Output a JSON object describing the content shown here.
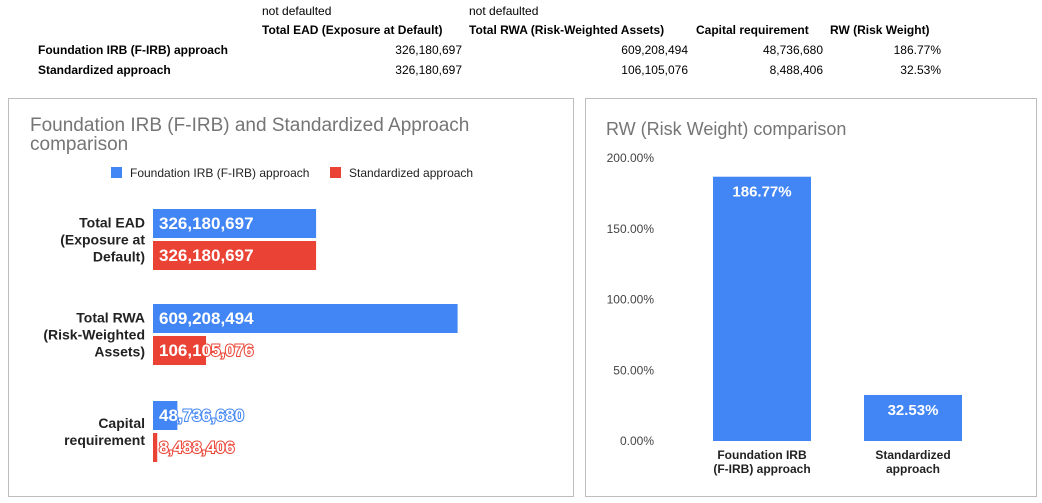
{
  "table": {
    "subheaders": [
      "not defaulted",
      "not defaulted"
    ],
    "headers": [
      "Total EAD (Exposure at Default)",
      "Total RWA (Risk-Weighted Assets)",
      "Capital requirement",
      "RW (Risk Weight)"
    ],
    "rows": [
      {
        "label": "Foundation IRB (F-IRB) approach",
        "ead": "326,180,697",
        "rwa": "609,208,494",
        "capital": "48,736,680",
        "rw": "186.77%"
      },
      {
        "label": "Standardized approach",
        "ead": "326,180,697",
        "rwa": "106,105,076",
        "capital": "8,488,406",
        "rw": "32.53%"
      }
    ]
  },
  "chart_data": [
    {
      "type": "bar",
      "orientation": "horizontal",
      "title": "Foundation IRB (F-IRB)  and Standardized Approach comparison",
      "title_lines": [
        "Foundation IRB (F-IRB)  and Standardized Approach",
        "comparison"
      ],
      "categories": [
        "Total EAD (Exposure at Default)",
        "Total RWA (Risk-Weighted Assets)",
        "Capital requirement"
      ],
      "category_lines": [
        [
          "Total EAD",
          "(Exposure at",
          "Default)"
        ],
        [
          "Total RWA",
          "(Risk-Weighted",
          "Assets)"
        ],
        [
          "Capital",
          "requirement"
        ]
      ],
      "series": [
        {
          "name": "Foundation IRB (F-IRB) approach",
          "color": "#4285f4",
          "values": [
            326180697,
            609208494,
            48736680
          ],
          "labels": [
            "326,180,697",
            "609,208,494",
            "48,736,680"
          ]
        },
        {
          "name": "Standardized approach",
          "color": "#ea4335",
          "values": [
            326180697,
            106105076,
            8488406
          ],
          "labels": [
            "326,180,697",
            "106,105,076",
            "8,488,406"
          ]
        }
      ],
      "xlim": [
        0,
        1200000000
      ],
      "legend": "top",
      "grid": false
    },
    {
      "type": "bar",
      "title": "RW (Risk Weight) comparison",
      "categories": [
        "Foundation IRB (F-IRB) approach",
        "Standardized approach"
      ],
      "category_lines": [
        [
          "Foundation IRB",
          "(F-IRB) approach"
        ],
        [
          "Standardized",
          "approach"
        ]
      ],
      "values": [
        186.77,
        32.53
      ],
      "labels": [
        "186.77%",
        "32.53%"
      ],
      "color": "#4285f4",
      "yticks": [
        "0.00%",
        "50.00%",
        "100.00%",
        "150.00%",
        "200.00%"
      ],
      "ylim": [
        0,
        200
      ],
      "grid": false
    }
  ]
}
